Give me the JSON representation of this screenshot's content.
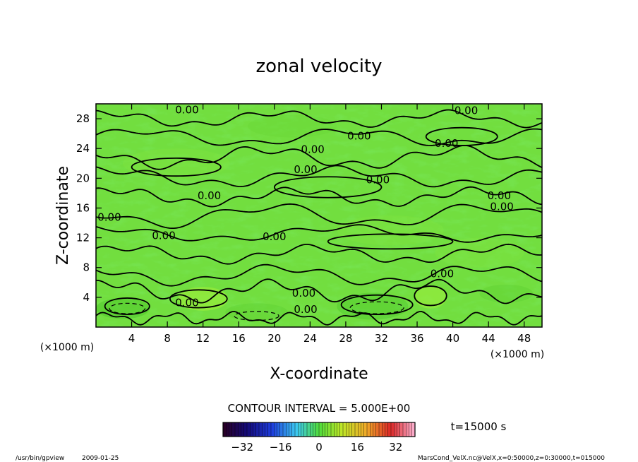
{
  "chart_data": {
    "type": "heatmap",
    "title": "zonal velocity",
    "xlabel": "X-coordinate",
    "ylabel": "Z-coordinate",
    "x_unit": "(×1000 m)",
    "y_unit": "(×1000 m)",
    "xlim": [
      0,
      50
    ],
    "ylim": [
      0,
      30
    ],
    "x_ticks": [
      4,
      8,
      12,
      16,
      20,
      24,
      28,
      32,
      36,
      40,
      44,
      48
    ],
    "y_ticks": [
      4,
      8,
      12,
      16,
      20,
      24,
      28
    ],
    "contour_interval_text": "CONTOUR INTERVAL = 5.000E+00",
    "contour_label": "0.00",
    "contour_labels": [
      {
        "x": 10.2,
        "y": 28.7,
        "text": "0.00"
      },
      {
        "x": 29.5,
        "y": 25.2,
        "text": "0.00"
      },
      {
        "x": 24.3,
        "y": 23.4,
        "text": "0.00"
      },
      {
        "x": 39.3,
        "y": 24.2,
        "text": "0.00"
      },
      {
        "x": 41.5,
        "y": 28.6,
        "text": "0.00"
      },
      {
        "x": 23.5,
        "y": 20.7,
        "text": "0.00"
      },
      {
        "x": 31.6,
        "y": 19.3,
        "text": "0.00"
      },
      {
        "x": 12.7,
        "y": 17.2,
        "text": "0.00"
      },
      {
        "x": 45.2,
        "y": 17.2,
        "text": "0.00"
      },
      {
        "x": 45.5,
        "y": 15.7,
        "text": "0.00"
      },
      {
        "x": 1.5,
        "y": 14.3,
        "text": "0.00"
      },
      {
        "x": 7.6,
        "y": 11.8,
        "text": "0.00"
      },
      {
        "x": 20.0,
        "y": 11.7,
        "text": "0.00"
      },
      {
        "x": 38.8,
        "y": 6.7,
        "text": "0.00"
      },
      {
        "x": 23.3,
        "y": 4.1,
        "text": "0.00"
      },
      {
        "x": 10.2,
        "y": 2.8,
        "text": "0.00"
      },
      {
        "x": 23.5,
        "y": 1.9,
        "text": "0.00"
      }
    ],
    "colorbar": {
      "ticks": [
        -32,
        -16,
        0,
        16,
        32
      ],
      "range": [
        -40,
        40
      ]
    },
    "time_label": "t=15000 s"
  },
  "footer": {
    "program": "/usr/bin/gpview",
    "date": "2009-01-25",
    "source": "MarsCond_VelX.nc@VelX,x=0:50000,z=0:30000,t=015000"
  },
  "colors": {
    "field": "#72de3f",
    "frame": "#000000"
  }
}
